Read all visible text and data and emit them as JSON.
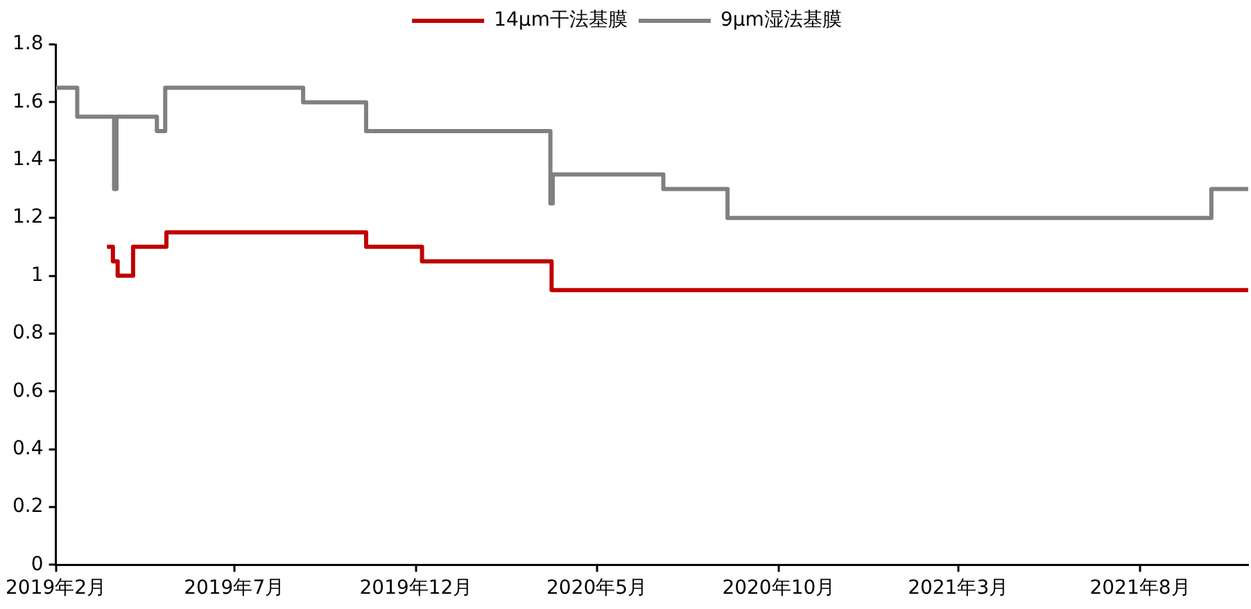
{
  "chart_data": {
    "type": "step",
    "series": [
      {
        "name": "14μm干法基膜",
        "color": "#c00000",
        "x": [
          "2019-03-16",
          "2019-03-21",
          "2019-03-25",
          "2019-04-07",
          "2019-05-05",
          "2019-10-20",
          "2019-12-06",
          "2020-03-24",
          "2021-10-31"
        ],
        "values": [
          1.1,
          1.05,
          1.0,
          1.1,
          1.15,
          1.1,
          1.05,
          0.95,
          0.95
        ]
      },
      {
        "name": "9μm湿法基膜",
        "color": "#808080",
        "x": [
          "2019-02-01",
          "2019-02-19",
          "2019-03-22",
          "2019-03-24",
          "2019-04-27",
          "2019-05-04",
          "2019-08-28",
          "2019-10-20",
          "2020-03-23",
          "2020-03-25",
          "2020-06-26",
          "2020-08-19",
          "2021-09-30",
          "2021-10-31"
        ],
        "values": [
          1.65,
          1.55,
          1.3,
          1.55,
          1.5,
          1.65,
          1.6,
          1.5,
          1.25,
          1.35,
          1.3,
          1.2,
          1.3,
          1.3
        ]
      }
    ],
    "xlim": [
      "2019-02-01",
      "2021-10-31"
    ],
    "xticks": [
      {
        "value": "2019-02-01",
        "label": "2019年2月"
      },
      {
        "value": "2019-07-01",
        "label": "2019年7月"
      },
      {
        "value": "2019-12-01",
        "label": "2019年12月"
      },
      {
        "value": "2020-05-01",
        "label": "2020年5月"
      },
      {
        "value": "2020-10-01",
        "label": "2020年10月"
      },
      {
        "value": "2021-03-01",
        "label": "2021年3月"
      },
      {
        "value": "2021-08-01",
        "label": "2021年8月"
      }
    ],
    "ylim": [
      0,
      1.8
    ],
    "yticks": [
      0,
      0.2,
      0.4,
      0.6,
      0.8,
      1,
      1.2,
      1.4,
      1.6,
      1.8
    ],
    "legend": "top"
  }
}
